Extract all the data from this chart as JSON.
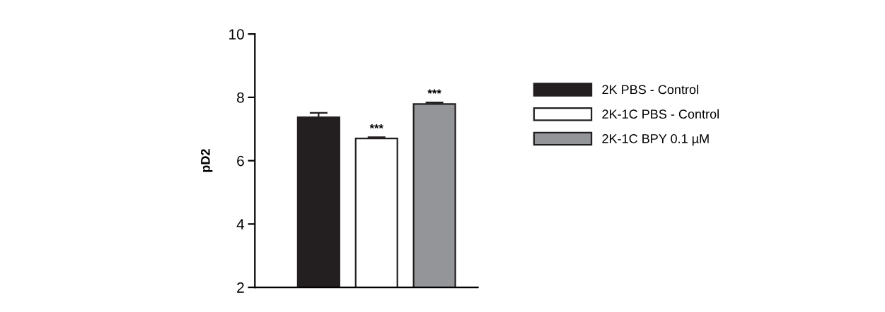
{
  "chart_data": {
    "type": "bar",
    "ylabel": "pD2",
    "categories": [
      null,
      null,
      null
    ],
    "series": [
      {
        "name": "2K PBS - Control",
        "color": "#231f20",
        "values": [
          7.37,
          null,
          null
        ],
        "errors": [
          0.14,
          null,
          null
        ]
      },
      {
        "name": "2K-1C PBS - Control",
        "color": "#ffffff",
        "values": [
          null,
          6.7,
          null
        ],
        "errors": [
          null,
          0.04,
          null
        ]
      },
      {
        "name": "2K-1C BPY 0.1 µM",
        "color": "#939598",
        "values": [
          null,
          null,
          7.79
        ],
        "errors": [
          null,
          null,
          0.05
        ]
      }
    ],
    "annotations": [
      {
        "text": "***",
        "y": 6.74
      },
      {
        "text": "***",
        "y": 7.84
      }
    ],
    "ylim": [
      2,
      10
    ],
    "yticks": [
      2,
      4,
      6,
      8,
      10
    ],
    "grid": false,
    "legend": "right"
  }
}
